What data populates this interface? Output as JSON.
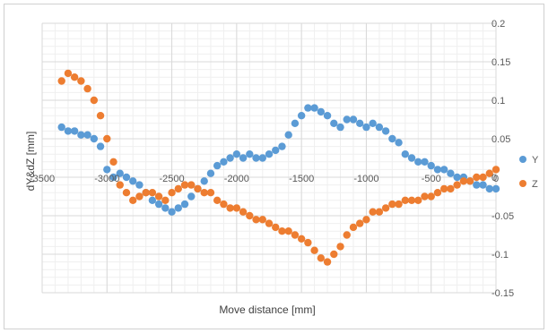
{
  "chart_data": {
    "type": "scatter",
    "title": "",
    "xlabel": "Move distance [mm]",
    "ylabel": "dY&dZ [mm]",
    "xlim": [
      -3500,
      0
    ],
    "ylim": [
      -0.15,
      0.2
    ],
    "x_ticks": [
      -3500,
      -3000,
      -2500,
      -2000,
      -1500,
      -1000,
      -500,
      0
    ],
    "x_tick_labels": [
      "-3500",
      "-3000",
      "-2500",
      "-2000",
      "-1500",
      "-1000",
      "-500",
      "0"
    ],
    "y_ticks": [
      -0.15,
      -0.1,
      -0.05,
      0,
      0.05,
      0.1,
      0.15,
      0.2
    ],
    "y_tick_labels": [
      "-0.15",
      "-0.1",
      "-0.05",
      "0",
      "0.05",
      "0.1",
      "0.15",
      "0.2"
    ],
    "grid": true,
    "legend_position": "right",
    "series": [
      {
        "name": "Y",
        "color": "#5B9BD5",
        "x": [
          -3350,
          -3300,
          -3250,
          -3200,
          -3150,
          -3100,
          -3050,
          -3000,
          -2950,
          -2900,
          -2850,
          -2800,
          -2750,
          -2700,
          -2650,
          -2600,
          -2550,
          -2500,
          -2450,
          -2400,
          -2350,
          -2300,
          -2250,
          -2200,
          -2150,
          -2100,
          -2050,
          -2000,
          -1950,
          -1900,
          -1850,
          -1800,
          -1750,
          -1700,
          -1650,
          -1600,
          -1550,
          -1500,
          -1450,
          -1400,
          -1350,
          -1300,
          -1250,
          -1200,
          -1150,
          -1100,
          -1050,
          -1000,
          -950,
          -900,
          -850,
          -800,
          -750,
          -700,
          -650,
          -600,
          -550,
          -500,
          -450,
          -400,
          -350,
          -300,
          -250,
          -200,
          -150,
          -100,
          -50,
          0
        ],
        "y": [
          0.065,
          0.06,
          0.06,
          0.055,
          0.055,
          0.05,
          0.04,
          0.01,
          0.0,
          0.005,
          0.0,
          -0.005,
          -0.01,
          -0.02,
          -0.03,
          -0.035,
          -0.04,
          -0.045,
          -0.04,
          -0.035,
          -0.025,
          -0.015,
          -0.005,
          0.005,
          0.015,
          0.02,
          0.025,
          0.03,
          0.025,
          0.03,
          0.025,
          0.025,
          0.03,
          0.035,
          0.04,
          0.055,
          0.07,
          0.08,
          0.09,
          0.09,
          0.085,
          0.08,
          0.07,
          0.065,
          0.075,
          0.075,
          0.07,
          0.065,
          0.07,
          0.065,
          0.06,
          0.05,
          0.045,
          0.03,
          0.025,
          0.02,
          0.02,
          0.015,
          0.01,
          0.01,
          0.005,
          0.0,
          0.0,
          -0.005,
          -0.01,
          -0.01,
          -0.015,
          -0.015
        ]
      },
      {
        "name": "Z",
        "color": "#ED7D31",
        "x": [
          -3350,
          -3300,
          -3250,
          -3200,
          -3150,
          -3100,
          -3050,
          -3000,
          -2950,
          -2900,
          -2850,
          -2800,
          -2750,
          -2700,
          -2650,
          -2600,
          -2550,
          -2500,
          -2450,
          -2400,
          -2350,
          -2300,
          -2250,
          -2200,
          -2150,
          -2100,
          -2050,
          -2000,
          -1950,
          -1900,
          -1850,
          -1800,
          -1750,
          -1700,
          -1650,
          -1600,
          -1550,
          -1500,
          -1450,
          -1400,
          -1350,
          -1300,
          -1250,
          -1200,
          -1150,
          -1100,
          -1050,
          -1000,
          -950,
          -900,
          -850,
          -800,
          -750,
          -700,
          -650,
          -600,
          -550,
          -500,
          -450,
          -400,
          -350,
          -300,
          -250,
          -200,
          -150,
          -100,
          -50,
          0
        ],
        "y": [
          0.125,
          0.135,
          0.13,
          0.125,
          0.115,
          0.1,
          0.08,
          0.05,
          0.02,
          -0.01,
          -0.02,
          -0.03,
          -0.025,
          -0.02,
          -0.02,
          -0.025,
          -0.03,
          -0.02,
          -0.015,
          -0.01,
          -0.01,
          -0.015,
          -0.02,
          -0.02,
          -0.03,
          -0.035,
          -0.04,
          -0.04,
          -0.045,
          -0.05,
          -0.055,
          -0.055,
          -0.06,
          -0.065,
          -0.07,
          -0.07,
          -0.075,
          -0.08,
          -0.085,
          -0.095,
          -0.105,
          -0.11,
          -0.1,
          -0.09,
          -0.075,
          -0.065,
          -0.06,
          -0.055,
          -0.045,
          -0.045,
          -0.04,
          -0.035,
          -0.035,
          -0.03,
          -0.03,
          -0.03,
          -0.025,
          -0.025,
          -0.02,
          -0.015,
          -0.015,
          -0.01,
          -0.005,
          -0.005,
          0.0,
          0.0,
          0.005,
          0.01
        ]
      }
    ]
  }
}
